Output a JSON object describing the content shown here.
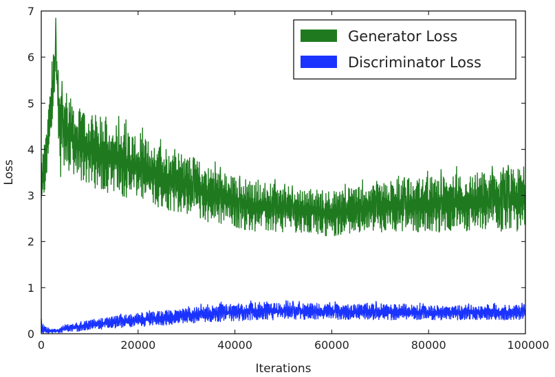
{
  "chart_data": {
    "type": "line",
    "title": "",
    "xlabel": "Iterations",
    "ylabel": "Loss",
    "xlim": [
      0,
      100000
    ],
    "ylim": [
      0,
      7
    ],
    "grid": false,
    "legend_position": "top-right",
    "x_ticks": [
      0,
      20000,
      40000,
      60000,
      80000,
      100000
    ],
    "y_ticks": [
      0,
      1,
      2,
      3,
      4,
      5,
      6,
      7
    ],
    "series": [
      {
        "name": "Generator Loss",
        "color": "#1f7a1f",
        "x": [
          0,
          1000,
          2000,
          3000,
          4000,
          5000,
          7500,
          10000,
          15000,
          20000,
          25000,
          30000,
          35000,
          40000,
          45000,
          50000,
          55000,
          60000,
          65000,
          70000,
          75000,
          80000,
          85000,
          90000,
          95000,
          100000
        ],
        "lower": [
          2.5,
          3.3,
          4.2,
          5.2,
          3.4,
          3.5,
          3.3,
          3.2,
          3.0,
          2.9,
          2.7,
          2.6,
          2.4,
          2.3,
          2.2,
          2.2,
          2.2,
          2.1,
          2.2,
          2.2,
          2.2,
          2.2,
          2.2,
          2.2,
          2.2,
          2.2
        ],
        "upper": [
          3.9,
          4.3,
          5.6,
          6.7,
          5.4,
          5.4,
          4.9,
          4.8,
          4.6,
          4.3,
          4.1,
          3.9,
          3.6,
          3.4,
          3.3,
          3.2,
          3.15,
          3.1,
          3.2,
          3.3,
          3.35,
          3.4,
          3.45,
          3.5,
          3.55,
          3.6
        ]
      },
      {
        "name": "Discriminator Loss",
        "color": "#1a33ff",
        "x": [
          0,
          1000,
          2000,
          3000,
          4000,
          5000,
          7500,
          10000,
          15000,
          20000,
          25000,
          30000,
          35000,
          40000,
          45000,
          50000,
          55000,
          60000,
          65000,
          70000,
          75000,
          80000,
          85000,
          90000,
          95000,
          100000
        ],
        "lower": [
          0.0,
          0.0,
          0.0,
          0.0,
          0.02,
          0.05,
          0.05,
          0.08,
          0.12,
          0.15,
          0.18,
          0.22,
          0.25,
          0.28,
          0.3,
          0.3,
          0.3,
          0.3,
          0.3,
          0.3,
          0.3,
          0.3,
          0.3,
          0.3,
          0.3,
          0.3
        ],
        "upper": [
          0.3,
          0.15,
          0.1,
          0.12,
          0.15,
          0.2,
          0.22,
          0.3,
          0.38,
          0.45,
          0.5,
          0.55,
          0.62,
          0.66,
          0.68,
          0.68,
          0.67,
          0.65,
          0.65,
          0.65,
          0.63,
          0.62,
          0.62,
          0.62,
          0.62,
          0.62
        ]
      }
    ]
  }
}
